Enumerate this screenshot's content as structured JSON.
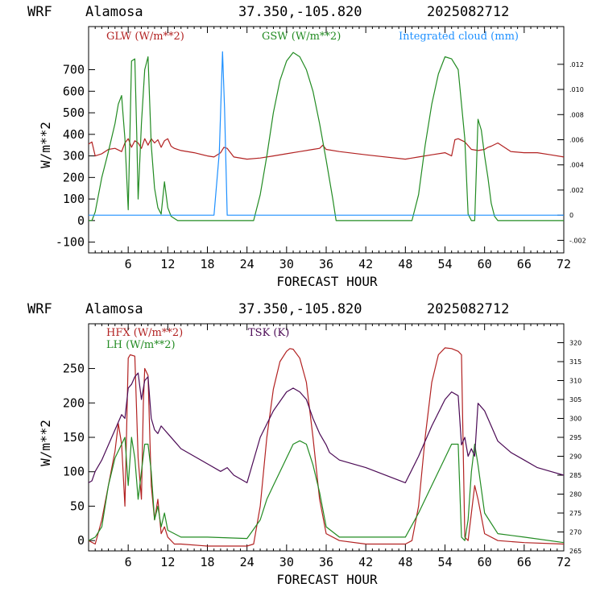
{
  "panels": [
    {
      "header": {
        "model": "WRF",
        "site": "Alamosa",
        "coords": "37.350,-105.820",
        "date": "2025082712"
      },
      "xlabel": "FORECAST HOUR",
      "ylabel": "W/m**2",
      "legend": [
        {
          "label": "GLW (W/m**2)",
          "color": "#b22222"
        },
        {
          "label": "GSW (W/m**2)",
          "color": "#228b22"
        },
        {
          "label": "Integrated cloud (mm)",
          "color": "#1e90ff"
        }
      ]
    },
    {
      "header": {
        "model": "WRF",
        "site": "Alamosa",
        "coords": "37.350,-105.820",
        "date": "2025082712"
      },
      "xlabel": "FORECAST HOUR",
      "ylabel": "W/m**2",
      "legend": [
        {
          "label": "HFX (W/m**2)",
          "color": "#b22222"
        },
        {
          "label": "LH  (W/m**2)",
          "color": "#228b22"
        },
        {
          "label": "TSK (K)",
          "color": "#4b0a55"
        }
      ]
    }
  ],
  "chart_data": [
    {
      "type": "line",
      "xlabel": "FORECAST HOUR",
      "ylabel": "W/m**2",
      "xlim": [
        0,
        72
      ],
      "ylim": [
        -150,
        900
      ],
      "y2lim": [
        -0.003,
        0.015
      ],
      "x_ticks": [
        "6",
        "12",
        "18",
        "24",
        "30",
        "36",
        "42",
        "48",
        "54",
        "60",
        "66",
        "72"
      ],
      "y_ticks": [
        "-100",
        "0",
        "100",
        "200",
        "300",
        "400",
        "500",
        "600",
        "700"
      ],
      "y2_ticks": [
        "-.002",
        "0",
        ".002",
        ".004",
        ".006",
        ".008",
        ".010",
        ".012"
      ],
      "series": [
        {
          "name": "GLW (W/m**2)",
          "color": "#b22222",
          "axis": "left",
          "x": [
            0,
            0.5,
            1,
            2,
            3,
            4,
            5,
            5.5,
            6,
            6.5,
            7,
            7.5,
            8,
            8.5,
            9,
            9.5,
            10,
            10.5,
            11,
            11.5,
            12,
            12.5,
            13,
            14,
            16,
            18,
            19,
            20,
            20.5,
            21,
            22,
            24,
            26,
            28,
            30,
            32,
            34,
            35,
            35.5,
            36,
            38,
            42,
            48,
            50,
            52,
            54,
            55,
            55.5,
            56,
            57,
            58,
            59,
            60,
            60.5,
            61,
            62,
            64,
            66,
            68,
            70,
            72
          ],
          "y": [
            355,
            365,
            300,
            310,
            330,
            335,
            320,
            360,
            380,
            340,
            370,
            360,
            335,
            380,
            350,
            380,
            360,
            375,
            340,
            370,
            380,
            345,
            335,
            325,
            315,
            300,
            295,
            315,
            340,
            335,
            295,
            285,
            290,
            300,
            310,
            320,
            330,
            335,
            350,
            330,
            320,
            305,
            285,
            295,
            305,
            315,
            300,
            375,
            380,
            365,
            330,
            325,
            330,
            340,
            345,
            360,
            320,
            315,
            315,
            305,
            295
          ]
        },
        {
          "name": "GSW (W/m**2)",
          "color": "#228b22",
          "axis": "left",
          "x": [
            0,
            0.5,
            1,
            2,
            3,
            4,
            4.5,
            5,
            5.2,
            5.5,
            6,
            6.5,
            7,
            7.3,
            7.5,
            8,
            8.5,
            9,
            9.5,
            10,
            10.5,
            11,
            11.5,
            12,
            12.5,
            13,
            13.5,
            24,
            25,
            26,
            27,
            28,
            29,
            30,
            31,
            32,
            33,
            34,
            35,
            36,
            37,
            37.5,
            48,
            49,
            50,
            51,
            52,
            53,
            54,
            55,
            56,
            57,
            57.5,
            58,
            58.5,
            59,
            59.5,
            60,
            60.5,
            61,
            61.5,
            62,
            72
          ],
          "y": [
            0,
            0,
            40,
            200,
            320,
            450,
            540,
            580,
            500,
            380,
            50,
            740,
            750,
            400,
            100,
            450,
            700,
            760,
            350,
            150,
            60,
            30,
            180,
            60,
            20,
            10,
            0,
            0,
            0,
            120,
            300,
            500,
            650,
            740,
            780,
            760,
            700,
            600,
            450,
            280,
            100,
            0,
            0,
            0,
            120,
            350,
            540,
            680,
            760,
            750,
            700,
            380,
            30,
            0,
            0,
            470,
            420,
            300,
            200,
            80,
            20,
            0,
            0
          ]
        },
        {
          "name": "Integrated cloud (mm)",
          "color": "#1e90ff",
          "axis": "right",
          "x": [
            0,
            18,
            19,
            19.8,
            20.3,
            20.6,
            21,
            22,
            72
          ],
          "y": [
            0,
            0,
            0,
            0.005,
            0.013,
            0.0085,
            0,
            0,
            0
          ]
        }
      ]
    },
    {
      "type": "line",
      "xlabel": "FORECAST HOUR",
      "ylabel": "W/m**2",
      "xlim": [
        0,
        72
      ],
      "ylim": [
        -15,
        315
      ],
      "y2lim": [
        265,
        325
      ],
      "x_ticks": [
        "6",
        "12",
        "18",
        "24",
        "30",
        "36",
        "42",
        "48",
        "54",
        "60",
        "66",
        "72"
      ],
      "y_ticks": [
        "0",
        "50",
        "100",
        "150",
        "200",
        "250"
      ],
      "y2_ticks": [
        "265",
        "270",
        "275",
        "280",
        "285",
        "290",
        "295",
        "300",
        "305",
        "310",
        "315",
        "320"
      ],
      "series": [
        {
          "name": "HFX (W/m**2)",
          "color": "#b22222",
          "axis": "left",
          "x": [
            0,
            1,
            2,
            3,
            4,
            4.5,
            5,
            5.5,
            6,
            6.3,
            7,
            7.5,
            8,
            8.3,
            8.5,
            9,
            9.5,
            10,
            10.5,
            11,
            11.5,
            12,
            13,
            14,
            18,
            24,
            25,
            26,
            27,
            28,
            29,
            30,
            30.5,
            31,
            32,
            33,
            34,
            35,
            36,
            38,
            42,
            48,
            49,
            50,
            51,
            52,
            53,
            54,
            55,
            56,
            56.5,
            57,
            57.5,
            58,
            58.5,
            59,
            60,
            62,
            66,
            72
          ],
          "y": [
            0,
            -5,
            30,
            80,
            130,
            170,
            140,
            50,
            265,
            270,
            268,
            120,
            60,
            200,
            250,
            240,
            80,
            30,
            60,
            10,
            20,
            5,
            -5,
            -5,
            -8,
            -8,
            -5,
            50,
            150,
            220,
            260,
            275,
            279,
            278,
            265,
            230,
            150,
            60,
            10,
            0,
            -5,
            -5,
            0,
            50,
            150,
            230,
            270,
            280,
            279,
            275,
            270,
            5,
            0,
            40,
            80,
            60,
            10,
            0,
            -3,
            -5
          ]
        },
        {
          "name": "LH  (W/m**2)",
          "color": "#228b22",
          "axis": "left",
          "x": [
            0,
            1,
            2,
            3,
            4,
            5,
            5.5,
            6,
            6.5,
            7,
            7.5,
            8,
            8.5,
            9,
            9.5,
            10,
            10.5,
            11,
            11.5,
            12,
            14,
            18,
            24,
            26,
            27,
            28,
            29,
            30,
            31,
            32,
            33,
            34,
            35,
            36,
            38,
            48,
            50,
            52,
            54,
            55,
            56,
            56.5,
            57,
            57.5,
            58,
            58.5,
            59,
            60,
            62,
            66,
            72
          ],
          "y": [
            0,
            5,
            20,
            80,
            120,
            140,
            150,
            80,
            150,
            120,
            60,
            100,
            140,
            140,
            100,
            30,
            50,
            20,
            40,
            15,
            5,
            5,
            3,
            30,
            60,
            80,
            100,
            120,
            140,
            145,
            140,
            110,
            70,
            20,
            5,
            5,
            40,
            80,
            120,
            140,
            140,
            5,
            0,
            30,
            100,
            140,
            110,
            40,
            10,
            5,
            -3
          ]
        },
        {
          "name": "TSK (K)",
          "color": "#4b0a55",
          "axis": "right",
          "x": [
            0,
            0.5,
            1,
            2,
            3,
            4,
            5,
            5.5,
            6,
            6.5,
            7,
            7.5,
            8,
            8.5,
            9,
            9.5,
            10,
            10.5,
            11,
            11.5,
            12,
            13,
            14,
            16,
            18,
            20,
            21,
            22,
            24,
            26,
            28,
            30,
            31,
            32,
            33,
            34,
            35,
            36,
            36.5,
            38,
            42,
            48,
            50,
            52,
            54,
            55,
            56,
            56.5,
            57,
            57.5,
            58,
            58.5,
            59,
            60,
            61,
            62,
            64,
            66,
            68,
            70,
            72
          ],
          "y": [
            283,
            283.5,
            286,
            289,
            293,
            297,
            301,
            300,
            308,
            309,
            311,
            312,
            305,
            310,
            311,
            300,
            297,
            296,
            298,
            297,
            296,
            294,
            292,
            290,
            288,
            286,
            287,
            285,
            283,
            295,
            302,
            307,
            308,
            307,
            305,
            300,
            296,
            293,
            291,
            289,
            287,
            283,
            290,
            298,
            305,
            307,
            306,
            293,
            295,
            290,
            292,
            290,
            304,
            302,
            298,
            294,
            291,
            289,
            287,
            286,
            285
          ]
        }
      ]
    }
  ]
}
